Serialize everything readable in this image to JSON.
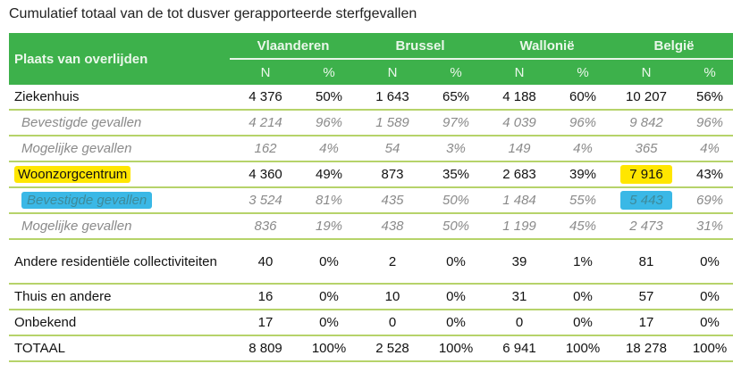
{
  "caption": "Cumulatief totaal van de tot dusver gerapporteerde sterfgevallen",
  "header": {
    "place_label": "Plaats van overlijden",
    "regions": [
      "Vlaanderen",
      "Brussel",
      "Wallonië",
      "België"
    ],
    "n_label": "N",
    "pct_label": "%"
  },
  "rows": [
    {
      "label": "Ziekenhuis",
      "type": "main",
      "values": [
        "4 376",
        "50%",
        "1 643",
        "65%",
        "4 188",
        "60%",
        "10 207",
        "56%"
      ]
    },
    {
      "label": "Bevestigde gevallen",
      "type": "sub",
      "values": [
        "4 214",
        "96%",
        "1 589",
        "97%",
        "4 039",
        "96%",
        "9 842",
        "96%"
      ]
    },
    {
      "label": "Mogelijke gevallen",
      "type": "sub",
      "values": [
        "162",
        "4%",
        "54",
        "3%",
        "149",
        "4%",
        "365",
        "4%"
      ]
    },
    {
      "label": "Woonzorgcentrum",
      "type": "main",
      "highlight": "yellow",
      "values": [
        "4 360",
        "49%",
        "873",
        "35%",
        "2 683",
        "39%",
        "7 916",
        "43%"
      ]
    },
    {
      "label": "Bevestigde gevallen",
      "type": "sub",
      "highlight": "blue",
      "values": [
        "3 524",
        "81%",
        "435",
        "50%",
        "1 484",
        "55%",
        "5 443",
        "69%"
      ]
    },
    {
      "label": "Mogelijke gevallen",
      "type": "sub",
      "values": [
        "836",
        "19%",
        "438",
        "50%",
        "1 199",
        "45%",
        "2 473",
        "31%"
      ]
    },
    {
      "label": "Andere residentiële collectiviteiten",
      "type": "main",
      "values": [
        "40",
        "0%",
        "2",
        "0%",
        "39",
        "1%",
        "81",
        "0%"
      ]
    },
    {
      "label": "Thuis en andere",
      "type": "main",
      "values": [
        "16",
        "0%",
        "10",
        "0%",
        "31",
        "0%",
        "57",
        "0%"
      ]
    },
    {
      "label": "Onbekend",
      "type": "main",
      "values": [
        "17",
        "0%",
        "0",
        "0%",
        "0",
        "0%",
        "17",
        "0%"
      ]
    },
    {
      "label": "TOTAAL",
      "type": "main",
      "values": [
        "8 809",
        "100%",
        "2 528",
        "100%",
        "6 941",
        "100%",
        "18 278",
        "100%"
      ]
    }
  ],
  "colors": {
    "header_green": "#3db14b",
    "row_divider": "#b6d36a",
    "highlight_yellow": "#ffe600",
    "highlight_blue": "#3ab8e6"
  }
}
